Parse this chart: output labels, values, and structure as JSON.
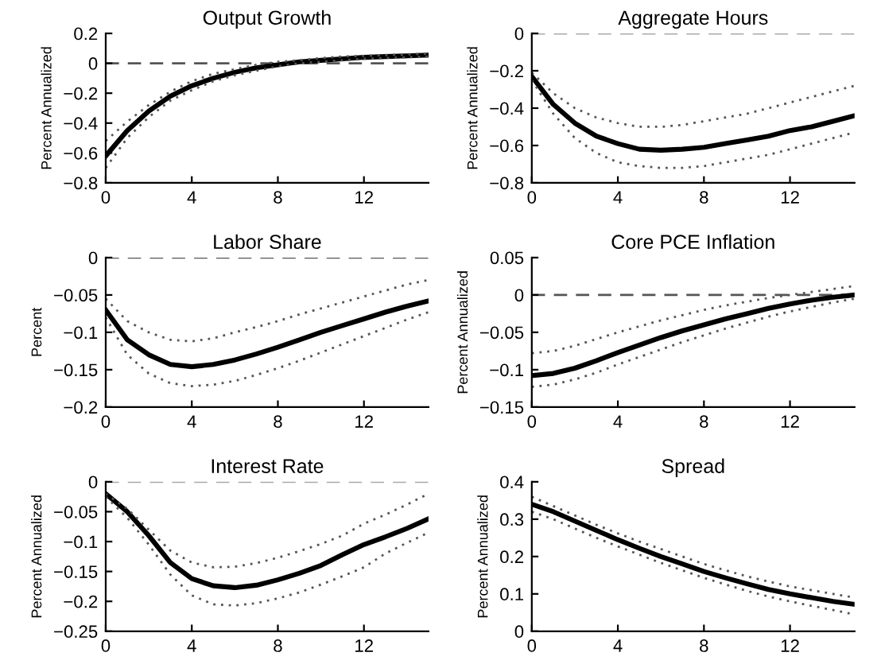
{
  "chart_data": [
    {
      "type": "line",
      "title": "Output Growth",
      "ylabel": "Percent Annualized",
      "x": [
        0,
        1,
        2,
        3,
        4,
        5,
        6,
        7,
        8,
        9,
        10,
        11,
        12,
        13,
        14,
        15
      ],
      "xlim": [
        0,
        15
      ],
      "xticks": [
        0,
        4,
        8,
        12
      ],
      "ylim": [
        -0.8,
        0.2
      ],
      "yticks": [
        {
          "value": -0.8,
          "label": "−0.8"
        },
        {
          "value": -0.6,
          "label": "−0.6"
        },
        {
          "value": -0.4,
          "label": "−0.4"
        },
        {
          "value": -0.2,
          "label": "−0.2"
        },
        0,
        0.2
      ],
      "grid": false,
      "legend": false,
      "series": [
        {
          "color": "#000000",
          "line_style": "solid",
          "values": [
            -0.62,
            -0.45,
            -0.32,
            -0.22,
            -0.15,
            -0.1,
            -0.06,
            -0.03,
            -0.01,
            0.01,
            0.02,
            0.03,
            0.04,
            0.045,
            0.05,
            0.055
          ]
        },
        {
          "color": "#555555",
          "line_style": "dotted",
          "values": [
            -0.52,
            -0.39,
            -0.28,
            -0.19,
            -0.12,
            -0.07,
            -0.04,
            -0.01,
            0.01,
            0.02,
            0.035,
            0.045,
            0.05,
            0.055,
            0.06,
            0.065
          ]
        },
        {
          "color": "#555555",
          "line_style": "dotted",
          "values": [
            -0.7,
            -0.5,
            -0.36,
            -0.25,
            -0.18,
            -0.12,
            -0.08,
            -0.05,
            -0.02,
            0,
            0.01,
            0.02,
            0.03,
            0.035,
            0.04,
            0.045
          ]
        }
      ],
      "ref_lines": [
        {
          "axis": "y",
          "value": 0,
          "color": "#555555",
          "line_style": "dashed"
        }
      ]
    },
    {
      "type": "line",
      "title": "Aggregate Hours",
      "ylabel": "Percent Annualized",
      "x": [
        0,
        1,
        2,
        3,
        4,
        5,
        6,
        7,
        8,
        9,
        10,
        11,
        12,
        13,
        14,
        15
      ],
      "xlim": [
        0,
        15
      ],
      "xticks": [
        0,
        4,
        8,
        12
      ],
      "ylim": [
        -0.8,
        0
      ],
      "yticks": [
        {
          "value": -0.8,
          "label": "−0.8"
        },
        {
          "value": -0.6,
          "label": "−0.6"
        },
        {
          "value": -0.4,
          "label": "−0.4"
        },
        {
          "value": -0.2,
          "label": "−0.2"
        },
        0
      ],
      "grid": false,
      "legend": false,
      "series": [
        {
          "color": "#000000",
          "line_style": "solid",
          "values": [
            -0.23,
            -0.38,
            -0.48,
            -0.55,
            -0.59,
            -0.62,
            -0.625,
            -0.62,
            -0.61,
            -0.59,
            -0.57,
            -0.55,
            -0.52,
            -0.5,
            -0.47,
            -0.44
          ]
        },
        {
          "color": "#555555",
          "line_style": "dotted",
          "values": [
            -0.21,
            -0.32,
            -0.4,
            -0.45,
            -0.48,
            -0.5,
            -0.5,
            -0.49,
            -0.47,
            -0.45,
            -0.43,
            -0.4,
            -0.37,
            -0.34,
            -0.31,
            -0.28
          ]
        },
        {
          "color": "#555555",
          "line_style": "dotted",
          "values": [
            -0.25,
            -0.43,
            -0.56,
            -0.64,
            -0.69,
            -0.71,
            -0.72,
            -0.72,
            -0.71,
            -0.69,
            -0.67,
            -0.65,
            -0.62,
            -0.59,
            -0.56,
            -0.53
          ]
        }
      ],
      "ref_lines": [
        {
          "axis": "y",
          "value": 0,
          "color": "#aaaaaa",
          "line_style": "dashed"
        }
      ]
    },
    {
      "type": "line",
      "title": "Labor Share",
      "ylabel": "Percent",
      "x": [
        0,
        1,
        2,
        3,
        4,
        5,
        6,
        7,
        8,
        9,
        10,
        11,
        12,
        13,
        14,
        15
      ],
      "xlim": [
        0,
        15
      ],
      "xticks": [
        0,
        4,
        8,
        12
      ],
      "ylim": [
        -0.2,
        0
      ],
      "yticks": [
        {
          "value": -0.2,
          "label": "−0.2"
        },
        {
          "value": -0.15,
          "label": "−0.15"
        },
        {
          "value": -0.1,
          "label": "−0.1"
        },
        {
          "value": -0.05,
          "label": "−0.05"
        },
        0
      ],
      "grid": false,
      "legend": false,
      "series": [
        {
          "color": "#000000",
          "line_style": "solid",
          "values": [
            -0.07,
            -0.11,
            -0.13,
            -0.143,
            -0.146,
            -0.143,
            -0.137,
            -0.129,
            -0.12,
            -0.11,
            -0.1,
            -0.091,
            -0.082,
            -0.073,
            -0.065,
            -0.058
          ]
        },
        {
          "color": "#555555",
          "line_style": "dotted",
          "values": [
            -0.055,
            -0.085,
            -0.1,
            -0.11,
            -0.112,
            -0.108,
            -0.1,
            -0.093,
            -0.085,
            -0.076,
            -0.068,
            -0.06,
            -0.052,
            -0.044,
            -0.036,
            -0.03
          ]
        },
        {
          "color": "#555555",
          "line_style": "dotted",
          "values": [
            -0.08,
            -0.13,
            -0.155,
            -0.168,
            -0.172,
            -0.17,
            -0.165,
            -0.157,
            -0.148,
            -0.138,
            -0.127,
            -0.116,
            -0.105,
            -0.094,
            -0.083,
            -0.073
          ]
        }
      ],
      "ref_lines": [
        {
          "axis": "y",
          "value": 0,
          "color": "#555555",
          "line_style": "dashed"
        }
      ]
    },
    {
      "type": "line",
      "title": "Core PCE Inflation",
      "ylabel": "Percent Annualized",
      "x": [
        0,
        1,
        2,
        3,
        4,
        5,
        6,
        7,
        8,
        9,
        10,
        11,
        12,
        13,
        14,
        15
      ],
      "xlim": [
        0,
        15
      ],
      "xticks": [
        0,
        4,
        8,
        12
      ],
      "ylim": [
        -0.15,
        0.05
      ],
      "yticks": [
        {
          "value": -0.15,
          "label": "−0.15"
        },
        {
          "value": -0.1,
          "label": "−0.1"
        },
        {
          "value": -0.05,
          "label": "−0.05"
        },
        0,
        0.05
      ],
      "grid": false,
      "legend": false,
      "series": [
        {
          "color": "#000000",
          "line_style": "solid",
          "values": [
            -0.108,
            -0.105,
            -0.098,
            -0.088,
            -0.077,
            -0.067,
            -0.057,
            -0.048,
            -0.04,
            -0.032,
            -0.025,
            -0.018,
            -0.012,
            -0.007,
            -0.003,
            0
          ]
        },
        {
          "color": "#555555",
          "line_style": "dotted",
          "values": [
            -0.078,
            -0.075,
            -0.068,
            -0.059,
            -0.05,
            -0.042,
            -0.034,
            -0.027,
            -0.02,
            -0.014,
            -0.009,
            -0.004,
            0,
            0.004,
            0.008,
            0.012
          ]
        },
        {
          "color": "#555555",
          "line_style": "dotted",
          "values": [
            -0.123,
            -0.12,
            -0.113,
            -0.104,
            -0.093,
            -0.083,
            -0.073,
            -0.063,
            -0.054,
            -0.045,
            -0.037,
            -0.029,
            -0.022,
            -0.016,
            -0.01,
            -0.005
          ]
        }
      ],
      "ref_lines": [
        {
          "axis": "y",
          "value": 0,
          "color": "#555555",
          "line_style": "dashed"
        }
      ]
    },
    {
      "type": "line",
      "title": "Interest Rate",
      "ylabel": "Percent Annualized",
      "x": [
        0,
        1,
        2,
        3,
        4,
        5,
        6,
        7,
        8,
        9,
        10,
        11,
        12,
        13,
        14,
        15
      ],
      "xlim": [
        0,
        15
      ],
      "xticks": [
        0,
        4,
        8,
        12
      ],
      "ylim": [
        -0.25,
        0
      ],
      "yticks": [
        {
          "value": -0.25,
          "label": "−0.25"
        },
        {
          "value": -0.2,
          "label": "−0.2"
        },
        {
          "value": -0.15,
          "label": "−0.15"
        },
        {
          "value": -0.1,
          "label": "−0.1"
        },
        {
          "value": -0.05,
          "label": "−0.05"
        },
        0
      ],
      "grid": false,
      "legend": false,
      "series": [
        {
          "color": "#000000",
          "line_style": "solid",
          "values": [
            -0.02,
            -0.05,
            -0.09,
            -0.135,
            -0.162,
            -0.174,
            -0.177,
            -0.173,
            -0.164,
            -0.153,
            -0.14,
            -0.122,
            -0.105,
            -0.092,
            -0.078,
            -0.062
          ]
        },
        {
          "color": "#555555",
          "line_style": "dotted",
          "values": [
            -0.02,
            -0.045,
            -0.08,
            -0.115,
            -0.135,
            -0.143,
            -0.142,
            -0.136,
            -0.127,
            -0.116,
            -0.104,
            -0.09,
            -0.07,
            -0.055,
            -0.038,
            -0.02
          ]
        },
        {
          "color": "#555555",
          "line_style": "dotted",
          "values": [
            -0.025,
            -0.06,
            -0.105,
            -0.155,
            -0.19,
            -0.205,
            -0.207,
            -0.203,
            -0.195,
            -0.185,
            -0.172,
            -0.158,
            -0.143,
            -0.12,
            -0.102,
            -0.085
          ]
        }
      ],
      "ref_lines": [
        {
          "axis": "y",
          "value": 0,
          "color": "#aaaaaa",
          "line_style": "dashed"
        }
      ]
    },
    {
      "type": "line",
      "title": "Spread",
      "ylabel": "Percent Annualized",
      "x": [
        0,
        1,
        2,
        3,
        4,
        5,
        6,
        7,
        8,
        9,
        10,
        11,
        12,
        13,
        14,
        15
      ],
      "xlim": [
        0,
        15
      ],
      "xticks": [
        0,
        4,
        8,
        12
      ],
      "ylim": [
        0,
        0.4
      ],
      "yticks": [
        0,
        0.1,
        0.2,
        0.3,
        0.4
      ],
      "grid": false,
      "legend": false,
      "series": [
        {
          "color": "#000000",
          "line_style": "solid",
          "values": [
            0.34,
            0.32,
            0.295,
            0.27,
            0.245,
            0.222,
            0.2,
            0.18,
            0.16,
            0.143,
            0.127,
            0.112,
            0.1,
            0.09,
            0.08,
            0.072
          ]
        },
        {
          "color": "#555555",
          "line_style": "dotted",
          "values": [
            0.36,
            0.335,
            0.31,
            0.285,
            0.262,
            0.24,
            0.22,
            0.2,
            0.18,
            0.163,
            0.147,
            0.133,
            0.12,
            0.11,
            0.1,
            0.09
          ]
        },
        {
          "color": "#555555",
          "line_style": "dotted",
          "values": [
            0.32,
            0.3,
            0.275,
            0.25,
            0.227,
            0.205,
            0.183,
            0.163,
            0.143,
            0.125,
            0.108,
            0.093,
            0.08,
            0.068,
            0.057,
            0.045
          ]
        }
      ]
    }
  ]
}
